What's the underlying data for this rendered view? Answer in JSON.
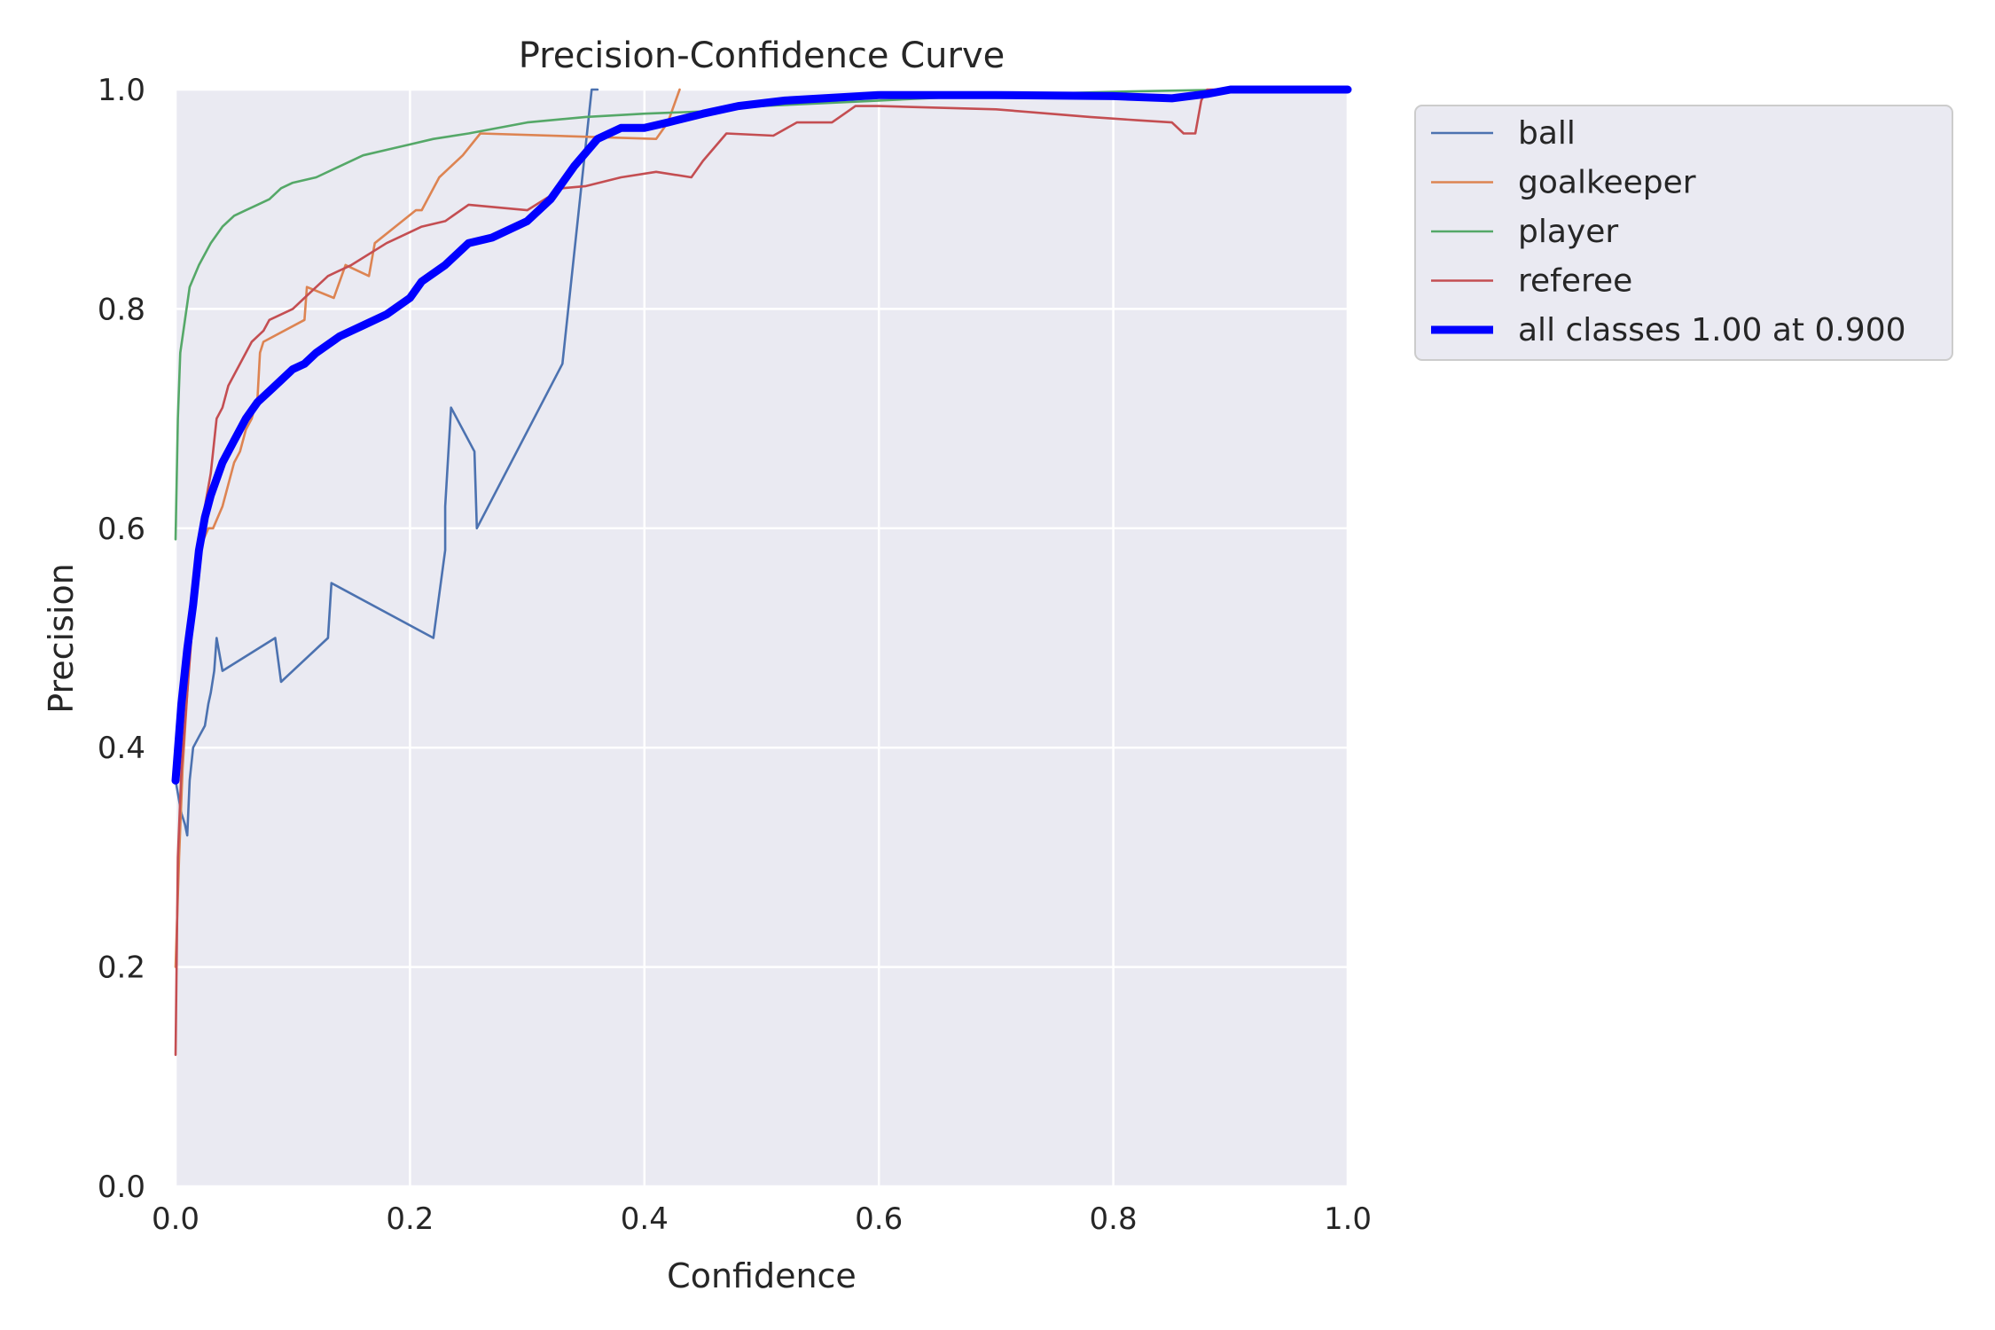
{
  "chart_data": {
    "type": "line",
    "title": "Precision-Confidence Curve",
    "xlabel": "Confidence",
    "ylabel": "Precision",
    "xlim": [
      0,
      1
    ],
    "ylim": [
      0,
      1
    ],
    "xticks": [
      "0.0",
      "0.2",
      "0.4",
      "0.6",
      "0.8",
      "1.0"
    ],
    "yticks": [
      "0.0",
      "0.2",
      "0.4",
      "0.6",
      "0.8",
      "1.0"
    ],
    "grid": true,
    "legend_position": "outside-right-top",
    "background_color": "#eaeaf2",
    "series": [
      {
        "name": "ball",
        "color": "#4c72b0",
        "x": [
          0.0,
          0.005,
          0.008,
          0.01,
          0.012,
          0.015,
          0.02,
          0.025,
          0.028,
          0.03,
          0.033,
          0.035,
          0.04,
          0.085,
          0.09,
          0.13,
          0.133,
          0.22,
          0.23,
          0.23,
          0.235,
          0.255,
          0.257,
          0.33,
          0.355,
          0.36
        ],
        "y": [
          0.37,
          0.34,
          0.33,
          0.32,
          0.37,
          0.4,
          0.41,
          0.42,
          0.44,
          0.45,
          0.47,
          0.5,
          0.47,
          0.5,
          0.46,
          0.5,
          0.55,
          0.5,
          0.58,
          0.62,
          0.71,
          0.67,
          0.6,
          0.75,
          1.0,
          1.0
        ]
      },
      {
        "name": "goalkeeper",
        "color": "#dd8452",
        "x": [
          0.0,
          0.003,
          0.006,
          0.01,
          0.015,
          0.02,
          0.028,
          0.032,
          0.04,
          0.045,
          0.05,
          0.055,
          0.06,
          0.065,
          0.07,
          0.072,
          0.075,
          0.11,
          0.112,
          0.135,
          0.145,
          0.165,
          0.17,
          0.205,
          0.21,
          0.225,
          0.245,
          0.26,
          0.41,
          0.42,
          0.43
        ],
        "y": [
          0.2,
          0.3,
          0.38,
          0.45,
          0.54,
          0.58,
          0.6,
          0.6,
          0.62,
          0.64,
          0.66,
          0.67,
          0.69,
          0.7,
          0.72,
          0.76,
          0.77,
          0.79,
          0.82,
          0.81,
          0.84,
          0.83,
          0.86,
          0.89,
          0.89,
          0.92,
          0.94,
          0.96,
          0.955,
          0.97,
          1.0
        ]
      },
      {
        "name": "player",
        "color": "#55a868",
        "x": [
          0.0,
          0.002,
          0.004,
          0.008,
          0.012,
          0.02,
          0.03,
          0.04,
          0.05,
          0.06,
          0.07,
          0.08,
          0.09,
          0.1,
          0.12,
          0.14,
          0.16,
          0.18,
          0.2,
          0.22,
          0.25,
          0.3,
          0.35,
          0.4,
          0.45,
          0.5,
          0.6,
          0.7,
          0.8,
          0.9,
          1.0
        ],
        "y": [
          0.59,
          0.7,
          0.76,
          0.79,
          0.82,
          0.84,
          0.86,
          0.875,
          0.885,
          0.89,
          0.895,
          0.9,
          0.91,
          0.915,
          0.92,
          0.93,
          0.94,
          0.945,
          0.95,
          0.955,
          0.96,
          0.97,
          0.975,
          0.978,
          0.98,
          0.985,
          0.99,
          0.995,
          0.998,
          1.0,
          1.0
        ]
      },
      {
        "name": "referee",
        "color": "#c44e52",
        "x": [
          0.0,
          0.002,
          0.005,
          0.01,
          0.015,
          0.02,
          0.025,
          0.03,
          0.035,
          0.04,
          0.045,
          0.05,
          0.055,
          0.06,
          0.065,
          0.075,
          0.08,
          0.1,
          0.11,
          0.12,
          0.13,
          0.15,
          0.18,
          0.2,
          0.21,
          0.23,
          0.25,
          0.3,
          0.33,
          0.35,
          0.38,
          0.41,
          0.44,
          0.45,
          0.47,
          0.51,
          0.53,
          0.56,
          0.58,
          0.6,
          0.7,
          0.78,
          0.82,
          0.85,
          0.86,
          0.87,
          0.875,
          0.88,
          0.9,
          1.0
        ],
        "y": [
          0.12,
          0.3,
          0.38,
          0.45,
          0.52,
          0.58,
          0.62,
          0.65,
          0.7,
          0.71,
          0.73,
          0.74,
          0.75,
          0.76,
          0.77,
          0.78,
          0.79,
          0.8,
          0.81,
          0.82,
          0.83,
          0.84,
          0.86,
          0.87,
          0.875,
          0.88,
          0.895,
          0.89,
          0.91,
          0.912,
          0.92,
          0.925,
          0.92,
          0.935,
          0.96,
          0.958,
          0.97,
          0.97,
          0.985,
          0.985,
          0.982,
          0.975,
          0.972,
          0.97,
          0.96,
          0.96,
          0.99,
          1.0,
          1.0,
          1.0
        ]
      },
      {
        "name": "all classes 1.00 at 0.900",
        "color": "#0000ff",
        "x": [
          0.0,
          0.005,
          0.01,
          0.015,
          0.02,
          0.025,
          0.03,
          0.04,
          0.05,
          0.06,
          0.07,
          0.08,
          0.09,
          0.1,
          0.11,
          0.12,
          0.14,
          0.16,
          0.18,
          0.2,
          0.21,
          0.23,
          0.25,
          0.27,
          0.3,
          0.32,
          0.34,
          0.36,
          0.38,
          0.4,
          0.42,
          0.45,
          0.48,
          0.52,
          0.6,
          0.7,
          0.8,
          0.85,
          0.88,
          0.9,
          1.0
        ],
        "y": [
          0.37,
          0.44,
          0.49,
          0.53,
          0.58,
          0.61,
          0.63,
          0.66,
          0.68,
          0.7,
          0.715,
          0.725,
          0.735,
          0.745,
          0.75,
          0.76,
          0.775,
          0.785,
          0.795,
          0.81,
          0.825,
          0.84,
          0.86,
          0.865,
          0.88,
          0.9,
          0.93,
          0.955,
          0.965,
          0.965,
          0.97,
          0.978,
          0.985,
          0.99,
          0.995,
          0.995,
          0.994,
          0.992,
          0.996,
          1.0,
          1.0
        ]
      }
    ]
  }
}
